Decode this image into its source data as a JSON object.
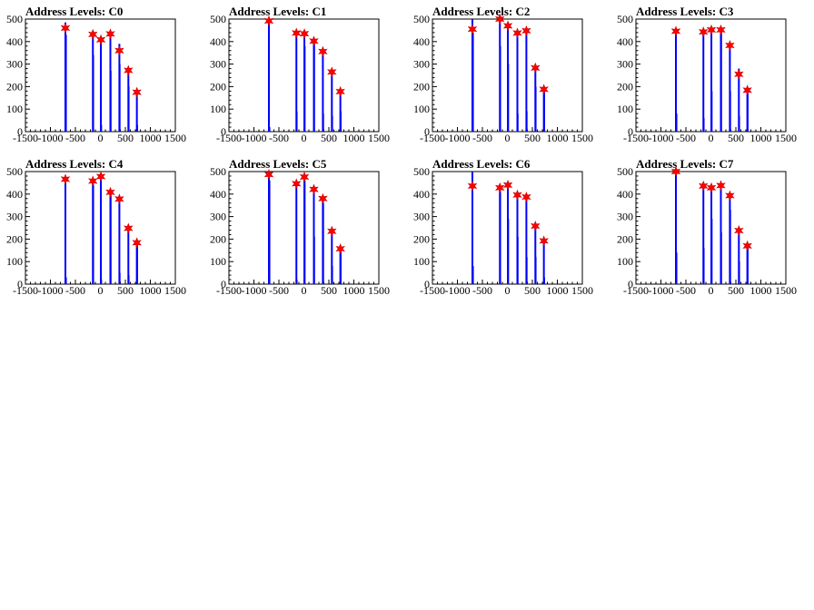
{
  "colors": {
    "bars": "#0000ff",
    "markers": "#ff0000",
    "axes": "#000000",
    "background": "#ffffff"
  },
  "chart_data": [
    {
      "type": "bar",
      "title": "Address Levels: C0",
      "xlim": [
        -1500,
        1500
      ],
      "ylim": [
        0,
        500
      ],
      "x_ticks": [
        -1500,
        -1000,
        -500,
        0,
        500,
        1000,
        1500
      ],
      "y_ticks": [
        0,
        100,
        200,
        300,
        400,
        500
      ],
      "bars": [
        {
          "x": -700,
          "y": 485
        },
        {
          "x": -690,
          "y": 430
        },
        {
          "x": -150,
          "y": 440
        },
        {
          "x": -145,
          "y": 340
        },
        {
          "x": 10,
          "y": 420
        },
        {
          "x": 15,
          "y": 30
        },
        {
          "x": 200,
          "y": 440
        },
        {
          "x": 205,
          "y": 270
        },
        {
          "x": 380,
          "y": 390
        },
        {
          "x": 385,
          "y": 300
        },
        {
          "x": 560,
          "y": 280
        },
        {
          "x": 565,
          "y": 200
        },
        {
          "x": 730,
          "y": 170
        },
        {
          "x": 735,
          "y": 30
        }
      ],
      "peaks": [
        {
          "x": -700,
          "y": 460
        },
        {
          "x": -150,
          "y": 432
        },
        {
          "x": 10,
          "y": 408
        },
        {
          "x": 200,
          "y": 434
        },
        {
          "x": 380,
          "y": 360
        },
        {
          "x": 560,
          "y": 272
        },
        {
          "x": 730,
          "y": 175
        }
      ]
    },
    {
      "type": "bar",
      "title": "Address Levels: C1",
      "xlim": [
        -1500,
        1500
      ],
      "ylim": [
        0,
        500
      ],
      "x_ticks": [
        -1500,
        -1000,
        -500,
        0,
        500,
        1000,
        1500
      ],
      "y_ticks": [
        0,
        100,
        200,
        300,
        400,
        500
      ],
      "bars": [
        {
          "x": -700,
          "y": 500
        },
        {
          "x": -690,
          "y": 20
        },
        {
          "x": -150,
          "y": 440
        },
        {
          "x": -145,
          "y": 90
        },
        {
          "x": 10,
          "y": 430
        },
        {
          "x": 15,
          "y": 380
        },
        {
          "x": 200,
          "y": 410
        },
        {
          "x": 205,
          "y": 390
        },
        {
          "x": 380,
          "y": 360
        },
        {
          "x": 385,
          "y": 80
        },
        {
          "x": 560,
          "y": 270
        },
        {
          "x": 565,
          "y": 70
        },
        {
          "x": 730,
          "y": 180
        },
        {
          "x": 735,
          "y": 90
        }
      ],
      "peaks": [
        {
          "x": -700,
          "y": 492
        },
        {
          "x": -150,
          "y": 438
        },
        {
          "x": 10,
          "y": 435
        },
        {
          "x": 200,
          "y": 402
        },
        {
          "x": 380,
          "y": 356
        },
        {
          "x": 560,
          "y": 265
        },
        {
          "x": 730,
          "y": 178
        }
      ]
    },
    {
      "type": "bar",
      "title": "Address Levels: C2",
      "xlim": [
        -1500,
        1500
      ],
      "ylim": [
        0,
        500
      ],
      "x_ticks": [
        -1500,
        -1000,
        -500,
        0,
        500,
        1000,
        1500
      ],
      "y_ticks": [
        0,
        100,
        200,
        300,
        400,
        500
      ],
      "bars": [
        {
          "x": -700,
          "y": 500
        },
        {
          "x": -690,
          "y": 440
        },
        {
          "x": -150,
          "y": 500
        },
        {
          "x": -145,
          "y": 380
        },
        {
          "x": 10,
          "y": 470
        },
        {
          "x": 15,
          "y": 300
        },
        {
          "x": 200,
          "y": 440
        },
        {
          "x": 205,
          "y": 80
        },
        {
          "x": 380,
          "y": 450
        },
        {
          "x": 385,
          "y": 90
        },
        {
          "x": 560,
          "y": 290
        },
        {
          "x": 565,
          "y": 200
        },
        {
          "x": 730,
          "y": 190
        },
        {
          "x": 735,
          "y": 180
        }
      ],
      "peaks": [
        {
          "x": -700,
          "y": 455
        },
        {
          "x": -150,
          "y": 500
        },
        {
          "x": 10,
          "y": 470
        },
        {
          "x": 200,
          "y": 438
        },
        {
          "x": 380,
          "y": 448
        },
        {
          "x": 560,
          "y": 283
        },
        {
          "x": 730,
          "y": 188
        }
      ]
    },
    {
      "type": "bar",
      "title": "Address Levels: C3",
      "xlim": [
        -1500,
        1500
      ],
      "ylim": [
        0,
        500
      ],
      "x_ticks": [
        -1500,
        -1000,
        -500,
        0,
        500,
        1000,
        1500
      ],
      "y_ticks": [
        0,
        100,
        200,
        300,
        400,
        500
      ],
      "bars": [
        {
          "x": -700,
          "y": 450
        },
        {
          "x": -690,
          "y": 80
        },
        {
          "x": -150,
          "y": 440
        },
        {
          "x": -145,
          "y": 60
        },
        {
          "x": 10,
          "y": 450
        },
        {
          "x": 15,
          "y": 180
        },
        {
          "x": 200,
          "y": 460
        },
        {
          "x": 205,
          "y": 440
        },
        {
          "x": 380,
          "y": 380
        },
        {
          "x": 385,
          "y": 180
        },
        {
          "x": 560,
          "y": 280
        },
        {
          "x": 565,
          "y": 70
        },
        {
          "x": 730,
          "y": 180
        },
        {
          "x": 735,
          "y": 170
        }
      ],
      "peaks": [
        {
          "x": -700,
          "y": 446
        },
        {
          "x": -150,
          "y": 443
        },
        {
          "x": 10,
          "y": 452
        },
        {
          "x": 200,
          "y": 452
        },
        {
          "x": 380,
          "y": 383
        },
        {
          "x": 560,
          "y": 255
        },
        {
          "x": 730,
          "y": 184
        }
      ]
    },
    {
      "type": "bar",
      "title": "Address Levels: C4",
      "xlim": [
        -1500,
        1500
      ],
      "ylim": [
        0,
        500
      ],
      "x_ticks": [
        -1500,
        -1000,
        -500,
        0,
        500,
        1000,
        1500
      ],
      "y_ticks": [
        0,
        100,
        200,
        300,
        400,
        500
      ],
      "bars": [
        {
          "x": -700,
          "y": 470
        },
        {
          "x": -690,
          "y": 30
        },
        {
          "x": -150,
          "y": 460
        },
        {
          "x": -145,
          "y": 440
        },
        {
          "x": 10,
          "y": 480
        },
        {
          "x": 15,
          "y": 20
        },
        {
          "x": 200,
          "y": 410
        },
        {
          "x": 205,
          "y": 400
        },
        {
          "x": 380,
          "y": 380
        },
        {
          "x": 385,
          "y": 50
        },
        {
          "x": 560,
          "y": 250
        },
        {
          "x": 565,
          "y": 40
        },
        {
          "x": 730,
          "y": 190
        },
        {
          "x": 735,
          "y": 180
        }
      ],
      "peaks": [
        {
          "x": -700,
          "y": 466
        },
        {
          "x": -150,
          "y": 458
        },
        {
          "x": 10,
          "y": 478
        },
        {
          "x": 200,
          "y": 408
        },
        {
          "x": 380,
          "y": 378
        },
        {
          "x": 560,
          "y": 248
        },
        {
          "x": 730,
          "y": 184
        }
      ]
    },
    {
      "type": "bar",
      "title": "Address Levels: C5",
      "xlim": [
        -1500,
        1500
      ],
      "ylim": [
        0,
        500
      ],
      "x_ticks": [
        -1500,
        -1000,
        -500,
        0,
        500,
        1000,
        1500
      ],
      "y_ticks": [
        0,
        100,
        200,
        300,
        400,
        500
      ],
      "bars": [
        {
          "x": -700,
          "y": 500
        },
        {
          "x": -690,
          "y": 460
        },
        {
          "x": -150,
          "y": 450
        },
        {
          "x": -145,
          "y": 20
        },
        {
          "x": 10,
          "y": 480
        },
        {
          "x": 15,
          "y": 460
        },
        {
          "x": 200,
          "y": 430
        },
        {
          "x": 205,
          "y": 210
        },
        {
          "x": 380,
          "y": 380
        },
        {
          "x": 385,
          "y": 360
        },
        {
          "x": 560,
          "y": 240
        },
        {
          "x": 565,
          "y": 80
        },
        {
          "x": 730,
          "y": 160
        },
        {
          "x": 735,
          "y": 150
        }
      ],
      "peaks": [
        {
          "x": -700,
          "y": 487
        },
        {
          "x": -150,
          "y": 446
        },
        {
          "x": 10,
          "y": 476
        },
        {
          "x": 200,
          "y": 421
        },
        {
          "x": 380,
          "y": 380
        },
        {
          "x": 560,
          "y": 235
        },
        {
          "x": 730,
          "y": 157
        }
      ]
    },
    {
      "type": "bar",
      "title": "Address Levels: C6",
      "xlim": [
        -1500,
        1500
      ],
      "ylim": [
        0,
        500
      ],
      "x_ticks": [
        -1500,
        -1000,
        -500,
        0,
        500,
        1000,
        1500
      ],
      "y_ticks": [
        0,
        100,
        200,
        300,
        400,
        500
      ],
      "bars": [
        {
          "x": -700,
          "y": 510
        },
        {
          "x": -690,
          "y": 80
        },
        {
          "x": -150,
          "y": 430
        },
        {
          "x": -145,
          "y": 410
        },
        {
          "x": 10,
          "y": 440
        },
        {
          "x": 15,
          "y": 290
        },
        {
          "x": 200,
          "y": 400
        },
        {
          "x": 205,
          "y": 210
        },
        {
          "x": 380,
          "y": 390
        },
        {
          "x": 385,
          "y": 120
        },
        {
          "x": 560,
          "y": 260
        },
        {
          "x": 565,
          "y": 120
        },
        {
          "x": 730,
          "y": 190
        },
        {
          "x": 735,
          "y": 30
        }
      ],
      "peaks": [
        {
          "x": -700,
          "y": 436
        },
        {
          "x": -150,
          "y": 428
        },
        {
          "x": 10,
          "y": 440
        },
        {
          "x": 200,
          "y": 396
        },
        {
          "x": 380,
          "y": 387
        },
        {
          "x": 560,
          "y": 258
        },
        {
          "x": 730,
          "y": 192
        }
      ]
    },
    {
      "type": "bar",
      "title": "Address Levels: C7",
      "xlim": [
        -1500,
        1500
      ],
      "ylim": [
        0,
        500
      ],
      "x_ticks": [
        -1500,
        -1000,
        -500,
        0,
        500,
        1000,
        1500
      ],
      "y_ticks": [
        0,
        100,
        200,
        300,
        400,
        500
      ],
      "bars": [
        {
          "x": -700,
          "y": 500
        },
        {
          "x": -690,
          "y": 140
        },
        {
          "x": -150,
          "y": 440
        },
        {
          "x": -145,
          "y": 160
        },
        {
          "x": 10,
          "y": 440
        },
        {
          "x": 15,
          "y": 290
        },
        {
          "x": 200,
          "y": 440
        },
        {
          "x": 205,
          "y": 230
        },
        {
          "x": 380,
          "y": 390
        },
        {
          "x": 385,
          "y": 330
        },
        {
          "x": 560,
          "y": 240
        },
        {
          "x": 565,
          "y": 100
        },
        {
          "x": 730,
          "y": 170
        },
        {
          "x": 735,
          "y": 160
        }
      ],
      "peaks": [
        {
          "x": -700,
          "y": 500
        },
        {
          "x": -150,
          "y": 436
        },
        {
          "x": 10,
          "y": 428
        },
        {
          "x": 200,
          "y": 438
        },
        {
          "x": 380,
          "y": 393
        },
        {
          "x": 560,
          "y": 238
        },
        {
          "x": 730,
          "y": 170
        }
      ]
    }
  ]
}
